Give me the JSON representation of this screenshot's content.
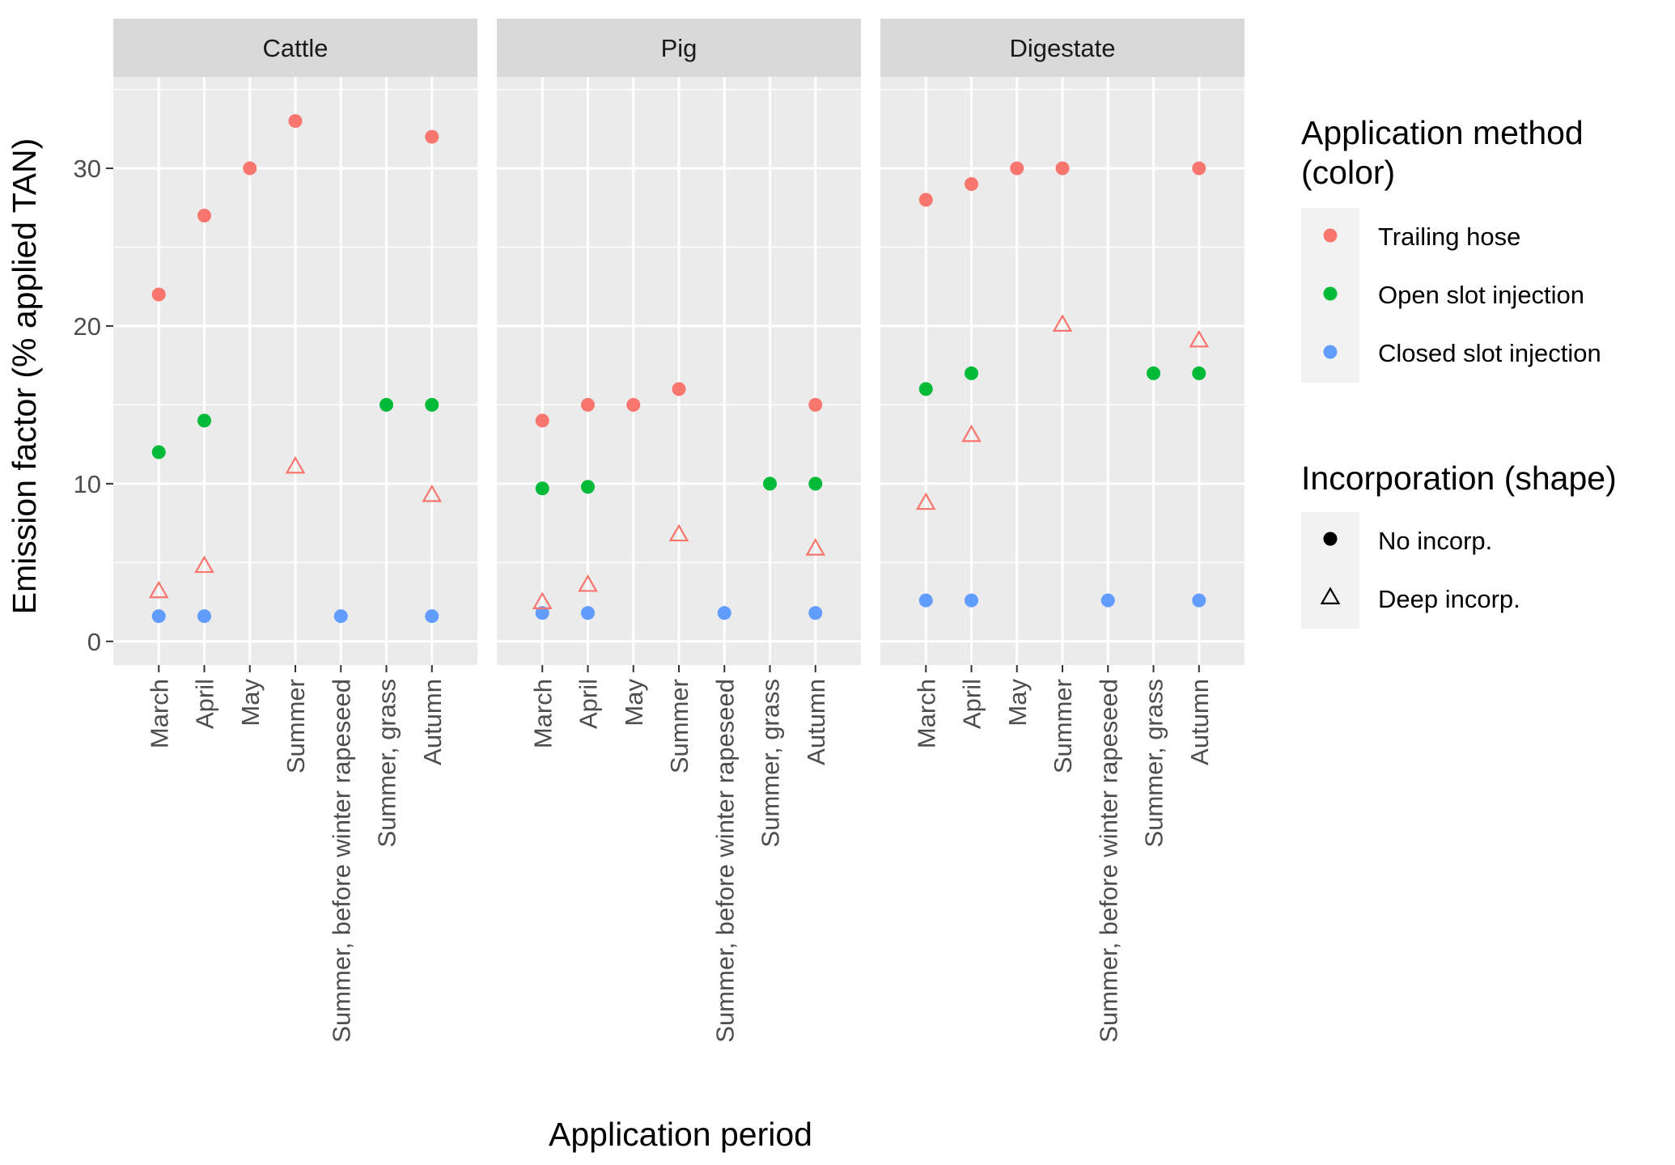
{
  "chart_data": {
    "type": "scatter",
    "facets": [
      "Cattle",
      "Pig",
      "Digestate"
    ],
    "categories": [
      "March",
      "April",
      "May",
      "Summer",
      "Summer, before winter rapeseed",
      "Summer, grass",
      "Autumn"
    ],
    "xlabel": "Application period",
    "ylabel": "Emission factor (% applied TAN)",
    "ylim": [
      -1.5,
      35.8
    ],
    "yticks": [
      0,
      10,
      20,
      30
    ],
    "grid": true,
    "legend_placement": "right",
    "colors": {
      "Trailing hose": "#F8766D",
      "Open slot injection": "#00BA38",
      "Closed slot injection": "#619CFF"
    },
    "legend": {
      "color_title": [
        "Application method",
        "(color)"
      ],
      "color_items": [
        "Trailing hose",
        "Open slot injection",
        "Closed slot injection"
      ],
      "shape_title": "Incorporation (shape)",
      "shape_items": [
        "No incorp.",
        "Deep incorp."
      ]
    },
    "points": [
      {
        "facet": "Cattle",
        "x": "March",
        "y": 22,
        "method": "Trailing hose",
        "incorporation": "No incorp."
      },
      {
        "facet": "Cattle",
        "x": "April",
        "y": 27,
        "method": "Trailing hose",
        "incorporation": "No incorp."
      },
      {
        "facet": "Cattle",
        "x": "May",
        "y": 30,
        "method": "Trailing hose",
        "incorporation": "No incorp."
      },
      {
        "facet": "Cattle",
        "x": "Summer",
        "y": 33,
        "method": "Trailing hose",
        "incorporation": "No incorp."
      },
      {
        "facet": "Cattle",
        "x": "Autumn",
        "y": 32,
        "method": "Trailing hose",
        "incorporation": "No incorp."
      },
      {
        "facet": "Cattle",
        "x": "March",
        "y": 12,
        "method": "Open slot injection",
        "incorporation": "No incorp."
      },
      {
        "facet": "Cattle",
        "x": "April",
        "y": 14,
        "method": "Open slot injection",
        "incorporation": "No incorp."
      },
      {
        "facet": "Cattle",
        "x": "Summer, grass",
        "y": 15,
        "method": "Open slot injection",
        "incorporation": "No incorp."
      },
      {
        "facet": "Cattle",
        "x": "Autumn",
        "y": 15,
        "method": "Open slot injection",
        "incorporation": "No incorp."
      },
      {
        "facet": "Cattle",
        "x": "March",
        "y": 1.6,
        "method": "Closed slot injection",
        "incorporation": "No incorp."
      },
      {
        "facet": "Cattle",
        "x": "April",
        "y": 1.6,
        "method": "Closed slot injection",
        "incorporation": "No incorp."
      },
      {
        "facet": "Cattle",
        "x": "Summer, before winter rapeseed",
        "y": 1.6,
        "method": "Closed slot injection",
        "incorporation": "No incorp."
      },
      {
        "facet": "Cattle",
        "x": "Autumn",
        "y": 1.6,
        "method": "Closed slot injection",
        "incorporation": "No incorp."
      },
      {
        "facet": "Cattle",
        "x": "March",
        "y": 3.2,
        "method": "Trailing hose",
        "incorporation": "Deep incorp."
      },
      {
        "facet": "Cattle",
        "x": "April",
        "y": 4.8,
        "method": "Trailing hose",
        "incorporation": "Deep incorp."
      },
      {
        "facet": "Cattle",
        "x": "Summer",
        "y": 11.1,
        "method": "Trailing hose",
        "incorporation": "Deep incorp."
      },
      {
        "facet": "Cattle",
        "x": "Autumn",
        "y": 9.3,
        "method": "Trailing hose",
        "incorporation": "Deep incorp."
      },
      {
        "facet": "Pig",
        "x": "March",
        "y": 14,
        "method": "Trailing hose",
        "incorporation": "No incorp."
      },
      {
        "facet": "Pig",
        "x": "April",
        "y": 15,
        "method": "Trailing hose",
        "incorporation": "No incorp."
      },
      {
        "facet": "Pig",
        "x": "May",
        "y": 15,
        "method": "Trailing hose",
        "incorporation": "No incorp."
      },
      {
        "facet": "Pig",
        "x": "Summer",
        "y": 16,
        "method": "Trailing hose",
        "incorporation": "No incorp."
      },
      {
        "facet": "Pig",
        "x": "Autumn",
        "y": 15,
        "method": "Trailing hose",
        "incorporation": "No incorp."
      },
      {
        "facet": "Pig",
        "x": "March",
        "y": 9.7,
        "method": "Open slot injection",
        "incorporation": "No incorp."
      },
      {
        "facet": "Pig",
        "x": "April",
        "y": 9.8,
        "method": "Open slot injection",
        "incorporation": "No incorp."
      },
      {
        "facet": "Pig",
        "x": "Summer, grass",
        "y": 10,
        "method": "Open slot injection",
        "incorporation": "No incorp."
      },
      {
        "facet": "Pig",
        "x": "Autumn",
        "y": 10,
        "method": "Open slot injection",
        "incorporation": "No incorp."
      },
      {
        "facet": "Pig",
        "x": "March",
        "y": 1.8,
        "method": "Closed slot injection",
        "incorporation": "No incorp."
      },
      {
        "facet": "Pig",
        "x": "April",
        "y": 1.8,
        "method": "Closed slot injection",
        "incorporation": "No incorp."
      },
      {
        "facet": "Pig",
        "x": "Summer, before winter rapeseed",
        "y": 1.8,
        "method": "Closed slot injection",
        "incorporation": "No incorp."
      },
      {
        "facet": "Pig",
        "x": "Autumn",
        "y": 1.8,
        "method": "Closed slot injection",
        "incorporation": "No incorp."
      },
      {
        "facet": "Pig",
        "x": "March",
        "y": 2.5,
        "method": "Trailing hose",
        "incorporation": "Deep incorp."
      },
      {
        "facet": "Pig",
        "x": "April",
        "y": 3.6,
        "method": "Trailing hose",
        "incorporation": "Deep incorp."
      },
      {
        "facet": "Pig",
        "x": "Summer",
        "y": 6.8,
        "method": "Trailing hose",
        "incorporation": "Deep incorp."
      },
      {
        "facet": "Pig",
        "x": "Autumn",
        "y": 5.9,
        "method": "Trailing hose",
        "incorporation": "Deep incorp."
      },
      {
        "facet": "Digestate",
        "x": "March",
        "y": 28,
        "method": "Trailing hose",
        "incorporation": "No incorp."
      },
      {
        "facet": "Digestate",
        "x": "April",
        "y": 29,
        "method": "Trailing hose",
        "incorporation": "No incorp."
      },
      {
        "facet": "Digestate",
        "x": "May",
        "y": 30,
        "method": "Trailing hose",
        "incorporation": "No incorp."
      },
      {
        "facet": "Digestate",
        "x": "Summer",
        "y": 30,
        "method": "Trailing hose",
        "incorporation": "No incorp."
      },
      {
        "facet": "Digestate",
        "x": "Autumn",
        "y": 30,
        "method": "Trailing hose",
        "incorporation": "No incorp."
      },
      {
        "facet": "Digestate",
        "x": "March",
        "y": 16,
        "method": "Open slot injection",
        "incorporation": "No incorp."
      },
      {
        "facet": "Digestate",
        "x": "April",
        "y": 17,
        "method": "Open slot injection",
        "incorporation": "No incorp."
      },
      {
        "facet": "Digestate",
        "x": "Summer, grass",
        "y": 17,
        "method": "Open slot injection",
        "incorporation": "No incorp."
      },
      {
        "facet": "Digestate",
        "x": "Autumn",
        "y": 17,
        "method": "Open slot injection",
        "incorporation": "No incorp."
      },
      {
        "facet": "Digestate",
        "x": "March",
        "y": 2.6,
        "method": "Closed slot injection",
        "incorporation": "No incorp."
      },
      {
        "facet": "Digestate",
        "x": "April",
        "y": 2.6,
        "method": "Closed slot injection",
        "incorporation": "No incorp."
      },
      {
        "facet": "Digestate",
        "x": "Summer, before winter rapeseed",
        "y": 2.6,
        "method": "Closed slot injection",
        "incorporation": "No incorp."
      },
      {
        "facet": "Digestate",
        "x": "Autumn",
        "y": 2.6,
        "method": "Closed slot injection",
        "incorporation": "No incorp."
      },
      {
        "facet": "Digestate",
        "x": "March",
        "y": 8.8,
        "method": "Trailing hose",
        "incorporation": "Deep incorp."
      },
      {
        "facet": "Digestate",
        "x": "April",
        "y": 13.1,
        "method": "Trailing hose",
        "incorporation": "Deep incorp."
      },
      {
        "facet": "Digestate",
        "x": "Summer",
        "y": 20.1,
        "method": "Trailing hose",
        "incorporation": "Deep incorp."
      },
      {
        "facet": "Digestate",
        "x": "Autumn",
        "y": 19.1,
        "method": "Trailing hose",
        "incorporation": "Deep incorp."
      }
    ]
  }
}
